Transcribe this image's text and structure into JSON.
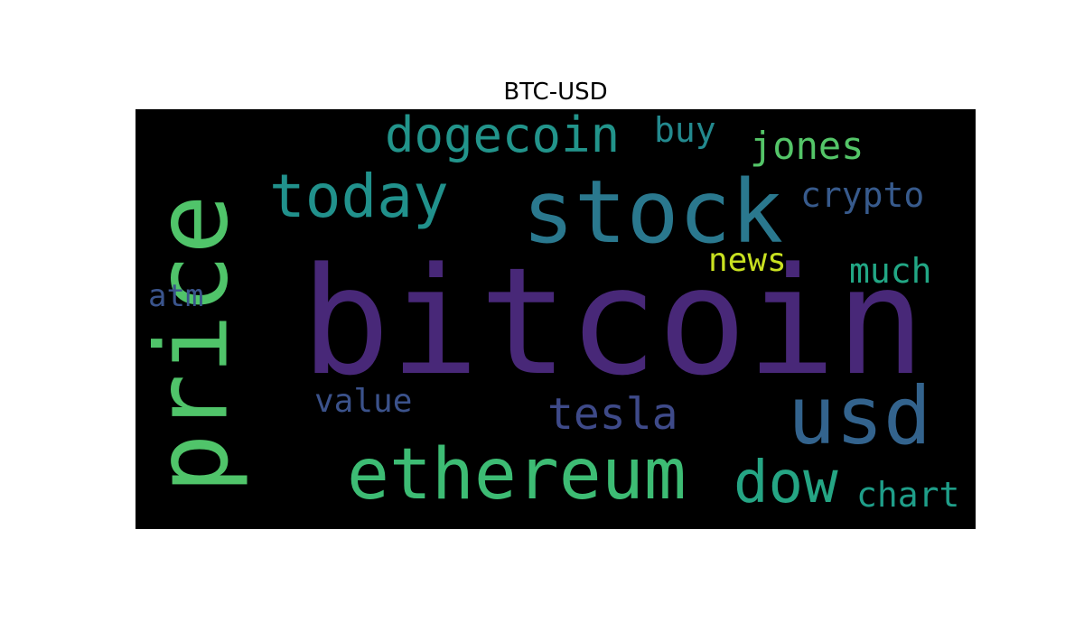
{
  "title": "BTC-USD",
  "background_color": "#000000",
  "words": [
    {
      "text": "bitcoin",
      "color": "#482878",
      "rotate": false
    },
    {
      "text": "price",
      "color": "#50c46a",
      "rotate": true
    },
    {
      "text": "stock",
      "color": "#2a788e",
      "rotate": false
    },
    {
      "text": "usd",
      "color": "#33638d",
      "rotate": false
    },
    {
      "text": "ethereum",
      "color": "#3dbc74",
      "rotate": false
    },
    {
      "text": "today",
      "color": "#21918c",
      "rotate": false
    },
    {
      "text": "dogecoin",
      "color": "#22948b",
      "rotate": false
    },
    {
      "text": "dow",
      "color": "#25a584",
      "rotate": false
    },
    {
      "text": "tesla",
      "color": "#3e4a89",
      "rotate": false
    },
    {
      "text": "jones",
      "color": "#54c568",
      "rotate": false
    },
    {
      "text": "crypto",
      "color": "#375a8c",
      "rotate": false
    },
    {
      "text": "buy",
      "color": "#23898e",
      "rotate": false
    },
    {
      "text": "much",
      "color": "#22a785",
      "rotate": false
    },
    {
      "text": "news",
      "color": "#c8e020",
      "rotate": false
    },
    {
      "text": "atm",
      "color": "#3a548c",
      "rotate": false
    },
    {
      "text": "value",
      "color": "#3b528b",
      "rotate": false
    },
    {
      "text": "chart",
      "color": "#1f9e89",
      "rotate": false
    }
  ]
}
